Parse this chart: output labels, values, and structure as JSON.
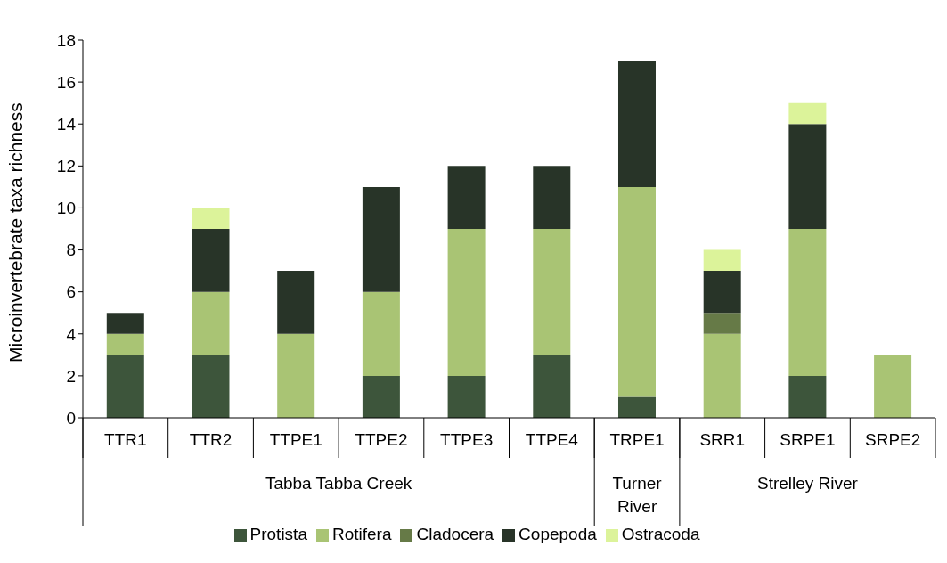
{
  "chart_data": {
    "type": "bar",
    "stacked": true,
    "ylabel": "Microinvertebrate taxa richness",
    "categories": [
      "TTR1",
      "TTR2",
      "TTPE1",
      "TTPE2",
      "TTPE3",
      "TTPE4",
      "TRPE1",
      "SRR1",
      "SRPE1",
      "SRPE2"
    ],
    "annotations": [
      "Tabba Tabba Creek",
      "Turner River",
      "Strelley River"
    ],
    "series": [
      {
        "name": "Protista",
        "color": "#3d553b",
        "values": [
          3,
          3,
          0,
          2,
          2,
          3,
          1,
          0,
          2,
          0
        ]
      },
      {
        "name": "Rotifera",
        "color": "#a9c474",
        "values": [
          1,
          3,
          4,
          4,
          7,
          6,
          10,
          4,
          7,
          3
        ]
      },
      {
        "name": "Cladocera",
        "color": "#667a47",
        "values": [
          0,
          0,
          0,
          0,
          0,
          0,
          0,
          1,
          0,
          0
        ]
      },
      {
        "name": "Copepoda",
        "color": "#283428",
        "values": [
          1,
          3,
          3,
          5,
          3,
          3,
          6,
          2,
          5,
          0
        ]
      },
      {
        "name": "Ostracoda",
        "color": "#dcf39a",
        "values": [
          0,
          1,
          0,
          0,
          0,
          0,
          0,
          1,
          1,
          0
        ]
      }
    ],
    "ylim": [
      0,
      18
    ],
    "yticks": [
      0,
      2,
      4,
      6,
      8,
      10,
      12,
      14,
      16,
      18
    ],
    "legend": "bottom"
  }
}
